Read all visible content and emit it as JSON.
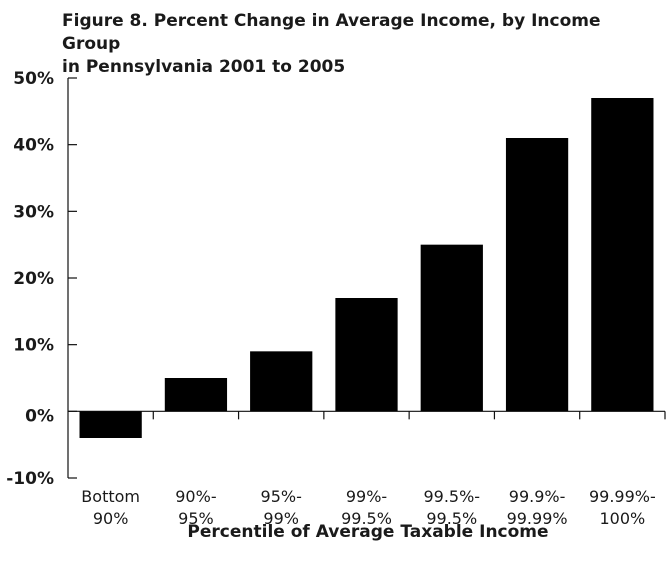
{
  "chart_data": {
    "type": "bar",
    "title": "Figure 8. Percent Change in Average Income, by Income Group",
    "subtitle": "in Pennsylvania 2001 to 2005",
    "xlabel": "Percentile of Average Taxable Income",
    "ylabel": "",
    "ylim": [
      -10,
      50
    ],
    "yticks": [
      "50%",
      "40%",
      "30%",
      "20%",
      "10%",
      "0%",
      "-10%"
    ],
    "ytick_values": [
      50,
      40,
      30,
      20,
      10,
      0,
      -10
    ],
    "categories": [
      {
        "line1": "Bottom",
        "line2": "90%"
      },
      {
        "line1": "90%-",
        "line2": "95%"
      },
      {
        "line1": "95%-",
        "line2": "99%"
      },
      {
        "line1": "99%-",
        "line2": "99.5%"
      },
      {
        "line1": "99.5%-",
        "line2": "99.5%"
      },
      {
        "line1": "99.9%-",
        "line2": "99.99%"
      },
      {
        "line1": "99.99%-",
        "line2": "100%"
      }
    ],
    "values": [
      -4,
      5,
      9,
      17,
      25,
      41,
      47
    ],
    "bar_color": "#000000",
    "grid": false,
    "legend": "none"
  }
}
